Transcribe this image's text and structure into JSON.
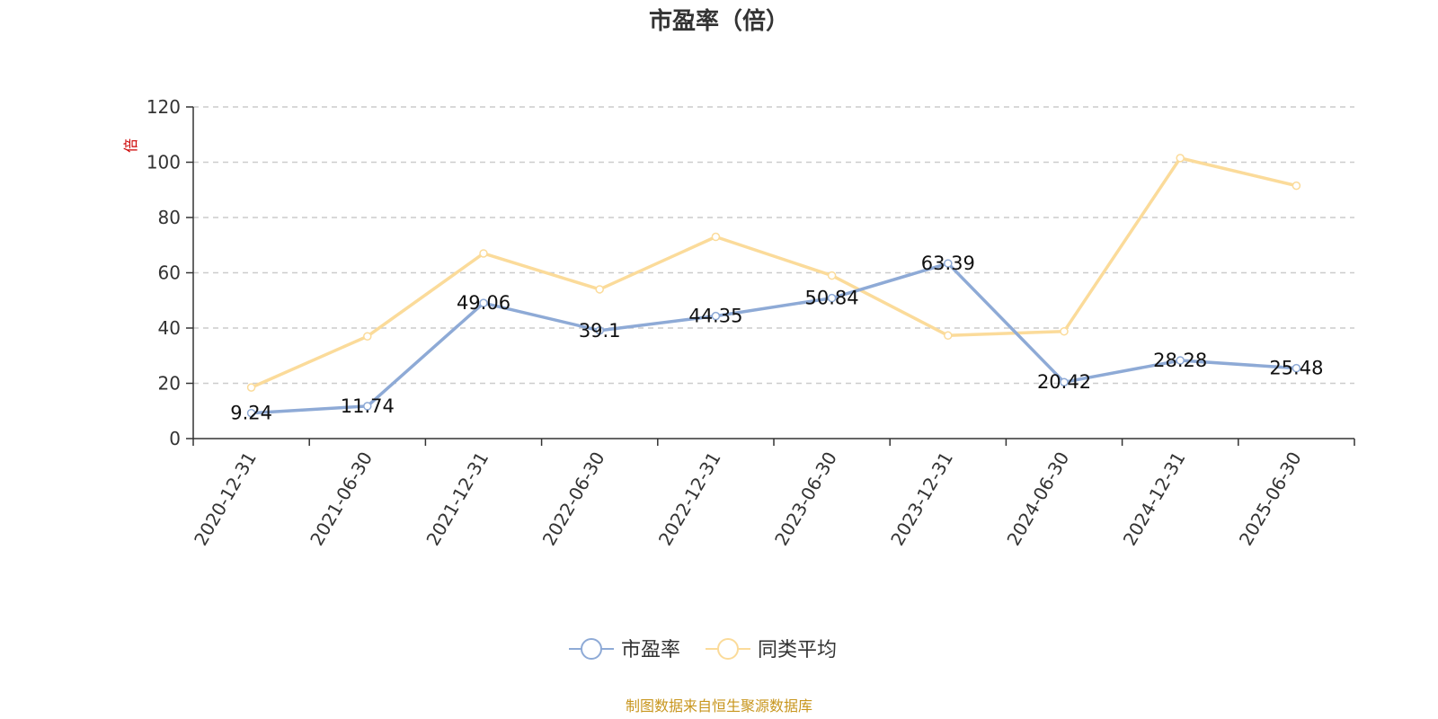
{
  "chart_data": {
    "type": "line",
    "title": "市盈率（倍）",
    "y_unit": "倍",
    "ylim": [
      0,
      120
    ],
    "yticks": [
      0,
      20,
      40,
      60,
      80,
      100,
      120
    ],
    "grid": true,
    "legend_position": "bottom",
    "categories": [
      "2020-12-31",
      "2021-06-30",
      "2021-12-31",
      "2022-06-30",
      "2022-12-31",
      "2023-06-30",
      "2023-12-31",
      "2024-06-30",
      "2024-12-31",
      "2025-06-30"
    ],
    "series": [
      {
        "name": "市盈率",
        "color": "#8eaad6",
        "values": [
          9.24,
          11.74,
          49.06,
          39.1,
          44.35,
          50.84,
          63.39,
          20.42,
          28.28,
          25.48
        ],
        "labels": [
          "9.24",
          "11.74",
          "49.06",
          "39.1",
          "44.35",
          "50.84",
          "63.39",
          "20.42",
          "28.28",
          "25.48"
        ]
      },
      {
        "name": "同类平均",
        "color": "#fbdb9a",
        "values": [
          18.5,
          37,
          67,
          54,
          73,
          59,
          37.3,
          38.8,
          101.5,
          91.5
        ]
      }
    ]
  },
  "source_text": "制图数据来自恒生聚源数据库",
  "source_color": "#c8961e"
}
